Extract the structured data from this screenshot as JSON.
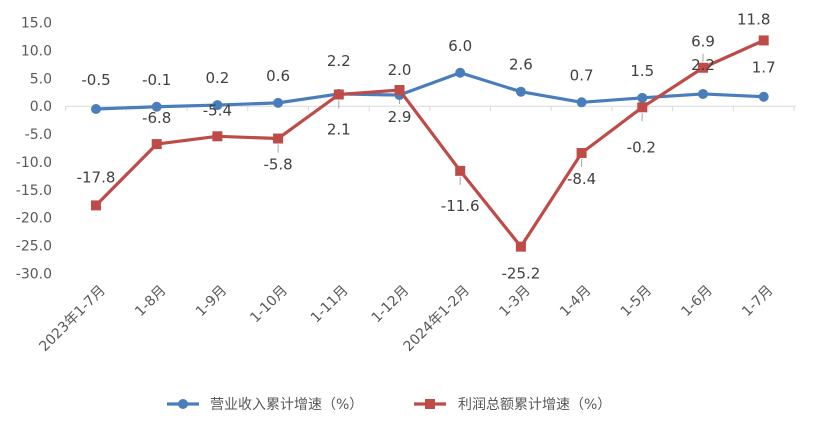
{
  "chart_data": {
    "type": "line",
    "title": "",
    "xlabel": "",
    "ylabel": "",
    "categories": [
      "2023年1-7月",
      "1-8月",
      "1-9月",
      "1-10月",
      "1-11月",
      "1-12月",
      "2024年1-2月",
      "1-3月",
      "1-4月",
      "1-5月",
      "1-6月",
      "1-7月"
    ],
    "ylim": [
      -30.0,
      15.0
    ],
    "yticks": [
      "15.0",
      "10.0",
      "5.0",
      "0.0",
      "-5.0",
      "-10.0",
      "-15.0",
      "-20.0",
      "-25.0",
      "-30.0"
    ],
    "grid": false,
    "legend_position": "bottom",
    "series": [
      {
        "name": "营业收入累计增速（%）",
        "color": "#4a7ebb",
        "marker": "circle",
        "values": [
          -0.5,
          -0.1,
          0.2,
          0.6,
          2.2,
          2.0,
          6.0,
          2.6,
          0.7,
          1.5,
          2.2,
          1.7
        ],
        "labels": [
          "-0.5",
          "-0.1",
          "0.2",
          "0.6",
          "2.2",
          "2.0",
          "6.0",
          "2.6",
          "0.7",
          "1.5",
          "2.2",
          "1.7"
        ]
      },
      {
        "name": "利润总额累计增速（%）",
        "color": "#be4b48",
        "marker": "square",
        "values": [
          -17.8,
          -6.8,
          -5.4,
          -5.8,
          2.1,
          2.9,
          -11.6,
          -25.2,
          -8.4,
          -0.2,
          6.9,
          11.8
        ],
        "labels": [
          "-17.8",
          "-6.8",
          "-5.4",
          "-5.8",
          "2.1",
          "2.9",
          "-11.6",
          "-25.2",
          "-8.4",
          "-0.2",
          "6.9",
          "11.8"
        ]
      }
    ]
  }
}
